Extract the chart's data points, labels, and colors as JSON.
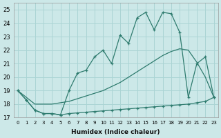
{
  "xlabel": "Humidex (Indice chaleur)",
  "bg_color": "#cce8e8",
  "grid_color": "#aad4d4",
  "line_color": "#2e7b6e",
  "xlim": [
    -0.5,
    23.5
  ],
  "ylim": [
    17,
    25.5
  ],
  "xticks": [
    0,
    1,
    2,
    3,
    4,
    5,
    6,
    7,
    8,
    9,
    10,
    11,
    12,
    13,
    14,
    15,
    16,
    17,
    18,
    19,
    20,
    21,
    22,
    23
  ],
  "yticks": [
    17,
    18,
    19,
    20,
    21,
    22,
    23,
    24,
    25
  ],
  "line_jagged_x": [
    0,
    1,
    2,
    3,
    4,
    5,
    6,
    7,
    8,
    9,
    10,
    11,
    12,
    13,
    14,
    15,
    16,
    17,
    18,
    19,
    20,
    21,
    22,
    23
  ],
  "line_jagged_y": [
    19.0,
    18.3,
    17.55,
    17.3,
    17.3,
    17.2,
    19.0,
    20.3,
    20.5,
    21.5,
    22.0,
    21.0,
    23.1,
    22.5,
    24.4,
    24.8,
    23.5,
    24.8,
    24.7,
    23.3,
    18.5,
    21.0,
    21.5,
    18.5
  ],
  "line_smooth_x": [
    0,
    1,
    2,
    3,
    4,
    5,
    6,
    7,
    8,
    9,
    10,
    11,
    12,
    13,
    14,
    15,
    16,
    17,
    18,
    19,
    20,
    21,
    22,
    23
  ],
  "line_smooth_y": [
    19.0,
    18.5,
    18.0,
    18.0,
    18.0,
    18.1,
    18.2,
    18.4,
    18.6,
    18.8,
    19.0,
    19.3,
    19.6,
    20.0,
    20.4,
    20.8,
    21.2,
    21.6,
    21.9,
    22.1,
    22.0,
    21.1,
    20.0,
    18.5
  ],
  "line_flat_x": [
    0,
    1,
    2,
    3,
    4,
    5,
    6,
    7,
    8,
    9,
    10,
    11,
    12,
    13,
    14,
    15,
    16,
    17,
    18,
    19,
    20,
    21,
    22,
    23
  ],
  "line_flat_y": [
    19.0,
    18.3,
    17.55,
    17.3,
    17.3,
    17.2,
    17.3,
    17.35,
    17.4,
    17.45,
    17.5,
    17.55,
    17.6,
    17.65,
    17.7,
    17.75,
    17.8,
    17.85,
    17.9,
    17.95,
    18.0,
    18.1,
    18.2,
    18.5
  ]
}
